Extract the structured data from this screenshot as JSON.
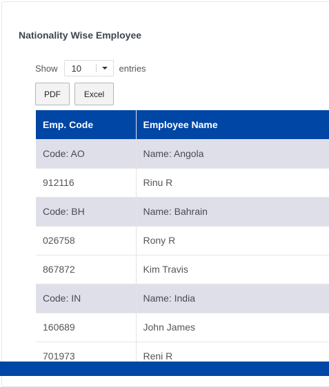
{
  "page": {
    "title": "Nationality Wise Employee"
  },
  "length_control": {
    "show_label": "Show",
    "selected": "10",
    "entries_label": "entries"
  },
  "export_buttons": {
    "pdf": "PDF",
    "excel": "Excel"
  },
  "table": {
    "headers": [
      "Emp. Code",
      "Employee Name"
    ],
    "rows": [
      {
        "type": "group",
        "code": "Code: AO",
        "name": "Name: Angola"
      },
      {
        "type": "data",
        "code": "912116",
        "name": "Rinu R"
      },
      {
        "type": "group",
        "code": "Code: BH",
        "name": "Name: Bahrain"
      },
      {
        "type": "data",
        "code": "026758",
        "name": "Rony R"
      },
      {
        "type": "data",
        "code": "867872",
        "name": "Kim Travis"
      },
      {
        "type": "group",
        "code": "Code: IN",
        "name": "Name: India"
      },
      {
        "type": "data",
        "code": "160689",
        "name": "John James"
      },
      {
        "type": "data",
        "code": "701973",
        "name": "Reni R"
      }
    ]
  },
  "colors": {
    "header_bg": "#0046a5",
    "group_row_bg": "#dfdfe9"
  },
  "icons": {
    "select_caret": "caret-down-icon"
  }
}
